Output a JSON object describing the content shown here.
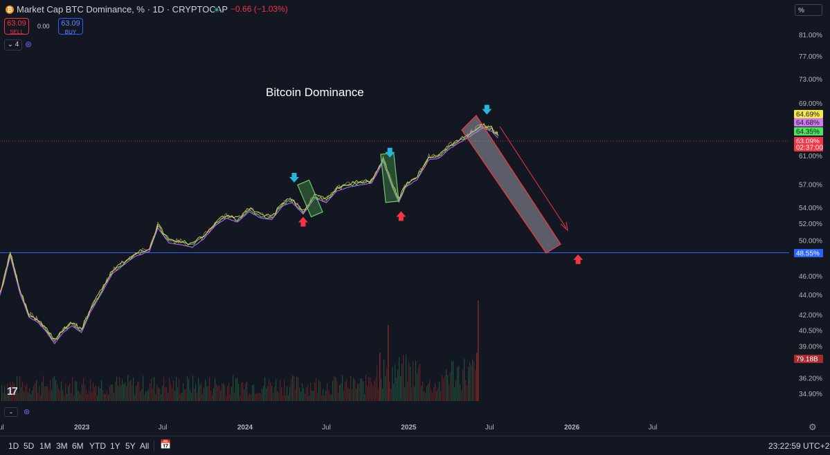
{
  "header": {
    "symbol_title": "Market Cap BTC Dominance, % · 1D · CRYPTOCAP",
    "symbol_icon": "bitcoin-icon",
    "change": "−0.66 (−1.03%)",
    "sell_price": "63.09",
    "sell_label": "SELL",
    "spread": "0.00",
    "buy_price": "63.09",
    "buy_label": "BUY",
    "indicator_count": "4",
    "scale_mode": "%"
  },
  "chart_data": {
    "type": "line",
    "annotation_title": "Bitcoin Dominance",
    "y_axis": {
      "scale": "log",
      "ticks": [
        "81.00%",
        "77.00%",
        "73.00%",
        "69.00%",
        "61.00%",
        "57.00%",
        "54.00%",
        "52.00%",
        "50.00%",
        "46.00%",
        "44.00%",
        "42.00%",
        "40.50%",
        "39.00%",
        "36.20%",
        "34.90%"
      ]
    },
    "x_axis": {
      "ticks": [
        "Jul",
        "2023",
        "Jul",
        "2024",
        "Jul",
        "2025",
        "Jul",
        "2026",
        "Jul"
      ]
    },
    "price_labels": [
      {
        "value": "64.69%",
        "color": "#f5e94a"
      },
      {
        "value": "64.68%",
        "color": "#d279f0"
      },
      {
        "value": "64.35%",
        "color": "#4ee35a"
      },
      {
        "value": "63.09%",
        "color": "#f23645"
      },
      {
        "value": "02:37:00",
        "color": "#f23645"
      },
      {
        "value": "48.55%",
        "color": "#2962ff"
      },
      {
        "value": "79.18B",
        "color": "#a82a2a"
      }
    ],
    "horizontal_line": {
      "value": 48.55,
      "color": "#2962ff"
    },
    "current_price_line": {
      "value": 63.09,
      "color": "#f23645"
    },
    "series": [
      {
        "x": [
          "2022-06-01",
          "2022-06-20",
          "2022-07-10",
          "2022-07-25",
          "2022-08-15",
          "2022-09-05",
          "2022-09-25",
          "2022-10-15",
          "2022-11-01",
          "2022-11-20",
          "2022-12-10",
          "2022-12-31",
          "2023-01-20",
          "2023-02-15",
          "2023-03-10",
          "2023-04-05",
          "2023-05-01",
          "2023-06-01",
          "2023-06-20",
          "2023-07-15",
          "2023-08-10",
          "2023-09-05",
          "2023-10-01",
          "2023-10-25",
          "2023-11-20",
          "2023-12-15",
          "2024-01-10",
          "2024-02-05",
          "2024-03-01",
          "2024-03-25",
          "2024-04-15",
          "2024-05-10",
          "2024-06-05",
          "2024-07-01",
          "2024-07-25",
          "2024-08-20",
          "2024-09-15",
          "2024-10-10",
          "2024-11-05",
          "2024-11-25",
          "2024-12-10",
          "2024-12-25",
          "2025-01-20",
          "2025-02-15",
          "2025-03-10",
          "2025-04-05",
          "2025-05-01",
          "2025-05-25",
          "2025-06-15",
          "2025-07-05",
          "2025-07-20"
        ],
        "values": [
          43.5,
          42.5,
          45.5,
          48.5,
          44.5,
          42.0,
          41.5,
          40.5,
          39.5,
          40.5,
          41.2,
          40.5,
          42.5,
          44.5,
          46.5,
          47.5,
          48.5,
          49.0,
          51.8,
          50.0,
          49.8,
          49.5,
          50.5,
          52.0,
          53.0,
          52.5,
          53.8,
          53.0,
          52.8,
          54.5,
          55.0,
          53.5,
          55.5,
          55.0,
          56.5,
          57.0,
          57.3,
          57.5,
          60.5,
          57.0,
          55.0,
          57.0,
          58.0,
          60.8,
          61.0,
          62.5,
          63.5,
          64.5,
          65.5,
          65.0,
          64.0
        ]
      }
    ],
    "annotations": [
      {
        "type": "down_arrow",
        "color": "#29b6d9",
        "x": "2024-04-20",
        "value": 57.8
      },
      {
        "type": "up_arrow",
        "color": "#f23645",
        "x": "2024-05-10",
        "value": 52.3
      },
      {
        "type": "down_arrow",
        "color": "#29b6d9",
        "x": "2024-11-20",
        "value": 61.3
      },
      {
        "type": "up_arrow",
        "color": "#f23645",
        "x": "2024-12-15",
        "value": 53.0
      },
      {
        "type": "down_arrow",
        "color": "#29b6d9",
        "x": "2025-06-25",
        "value": 67.8
      },
      {
        "type": "up_arrow",
        "color": "#f23645",
        "x": "2026-01-15",
        "value": 47.9
      }
    ],
    "volume_label": "79.18B"
  },
  "bottom_bar": {
    "timeframes": [
      "1D",
      "5D",
      "1M",
      "3M",
      "6M",
      "YTD",
      "1Y",
      "5Y",
      "All"
    ],
    "clock": "23:22:59 UTC+2"
  }
}
